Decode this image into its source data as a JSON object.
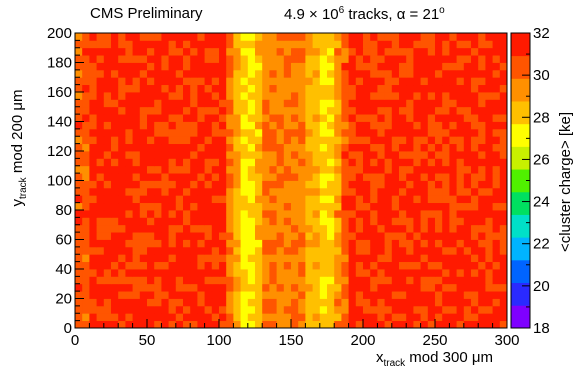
{
  "header": {
    "left": "CMS Preliminary",
    "right_prefix": "4.9 × 10",
    "right_exp": "6",
    "right_suffix": " tracks, α = 21",
    "right_degree": "o"
  },
  "chart_data": {
    "type": "heatmap",
    "xlabel_main": "x",
    "xlabel_sub": "track",
    "xlabel_rest": " mod 300 μm",
    "ylabel_main": "y",
    "ylabel_sub": "track",
    "ylabel_rest": " mod 200 μm",
    "colorbar_label": "<cluster charge> [ke]",
    "xlim": [
      0,
      300
    ],
    "ylim": [
      0,
      200
    ],
    "zlim": [
      18,
      32
    ],
    "x_ticks": [
      0,
      50,
      100,
      150,
      200,
      250,
      300
    ],
    "y_ticks": [
      0,
      20,
      40,
      60,
      80,
      100,
      120,
      140,
      160,
      180,
      200
    ],
    "z_ticks": [
      18,
      20,
      22,
      24,
      26,
      28,
      30,
      32
    ],
    "bins": {
      "nx": 60,
      "ny": 40,
      "x_bin_width": 5,
      "y_bin_width": 5
    },
    "z_profile_vs_x": [
      {
        "x_from": 0,
        "x_to": 10,
        "z": 30.3
      },
      {
        "x_from": 10,
        "x_to": 105,
        "z": 31.1
      },
      {
        "x_from": 105,
        "x_to": 110,
        "z": 30.0
      },
      {
        "x_from": 110,
        "x_to": 115,
        "z": 28.6
      },
      {
        "x_from": 115,
        "x_to": 125,
        "z": 27.6
      },
      {
        "x_from": 125,
        "x_to": 130,
        "z": 28.3
      },
      {
        "x_from": 130,
        "x_to": 160,
        "z": 29.6
      },
      {
        "x_from": 160,
        "x_to": 170,
        "z": 28.6
      },
      {
        "x_from": 170,
        "x_to": 180,
        "z": 28.0
      },
      {
        "x_from": 180,
        "x_to": 185,
        "z": 29.2
      },
      {
        "x_from": 185,
        "x_to": 190,
        "z": 30.4
      },
      {
        "x_from": 190,
        "x_to": 300,
        "z": 31.1
      }
    ],
    "colorscale": [
      "#7f00ff",
      "#2a2aff",
      "#0064ff",
      "#00b4ff",
      "#00e0c8",
      "#00e060",
      "#50f000",
      "#c8f000",
      "#ffff00",
      "#ffc000",
      "#ff9000",
      "#ff5500",
      "#ff1a00"
    ]
  }
}
